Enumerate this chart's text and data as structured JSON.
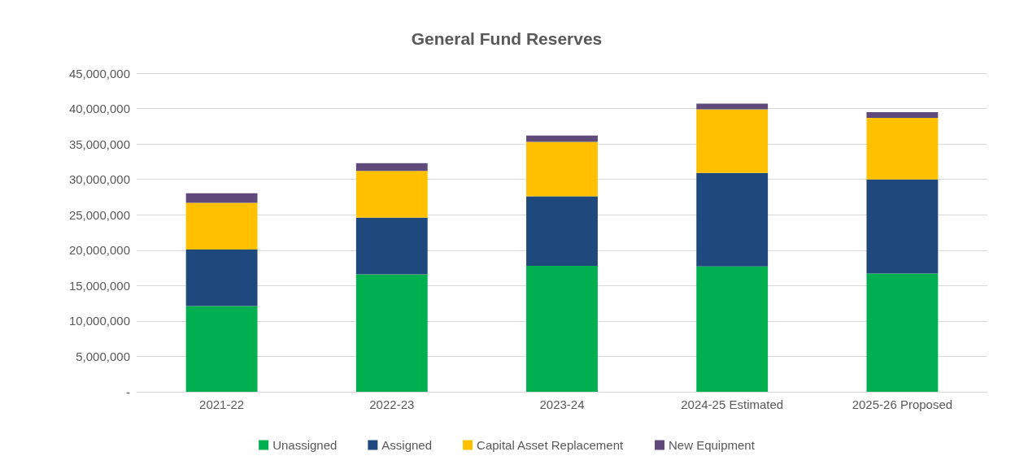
{
  "chart_data": {
    "type": "bar",
    "title": "General Fund Reserves",
    "stacked": true,
    "categories": [
      "2021-22",
      "2022-23",
      "2023-24",
      "2024-25 Estimated",
      "2025-26 Proposed"
    ],
    "series": [
      {
        "name": "Unassigned",
        "color": "#00b050",
        "values": [
          12100000,
          16600000,
          17800000,
          17700000,
          16700000
        ]
      },
      {
        "name": "Assigned",
        "color": "#1f497d",
        "values": [
          8000000,
          8000000,
          9800000,
          13200000,
          13300000
        ]
      },
      {
        "name": "Capital Asset Replacement",
        "color": "#ffc000",
        "values": [
          6600000,
          6600000,
          7700000,
          9000000,
          8700000
        ]
      },
      {
        "name": "New Equipment",
        "color": "#604a7b",
        "values": [
          1350000,
          1100000,
          900000,
          800000,
          800000
        ]
      }
    ],
    "ylim": [
      0,
      45000000
    ],
    "yticks": [
      {
        "value": 0,
        "label": "-"
      },
      {
        "value": 5000000,
        "label": "5,000,000"
      },
      {
        "value": 10000000,
        "label": "10,000,000"
      },
      {
        "value": 15000000,
        "label": "15,000,000"
      },
      {
        "value": 20000000,
        "label": "20,000,000"
      },
      {
        "value": 25000000,
        "label": "25,000,000"
      },
      {
        "value": 30000000,
        "label": "30,000,000"
      },
      {
        "value": 35000000,
        "label": "35,000,000"
      },
      {
        "value": 40000000,
        "label": "40,000,000"
      },
      {
        "value": 45000000,
        "label": "45,000,000"
      }
    ],
    "grid": "y",
    "legend": "bottom"
  }
}
